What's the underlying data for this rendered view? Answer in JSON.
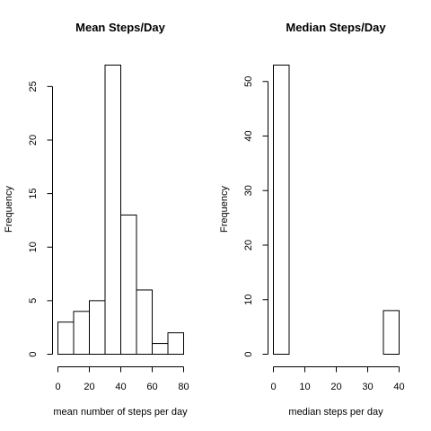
{
  "chart_data": [
    {
      "type": "bar",
      "title": "Mean Steps/Day",
      "xlabel": "mean number of steps per day",
      "ylabel": "Frequency",
      "bin_edges": [
        0,
        10,
        20,
        30,
        40,
        50,
        60,
        70,
        80
      ],
      "values": [
        3,
        4,
        5,
        27,
        13,
        6,
        1,
        2
      ],
      "xticks": [
        0,
        20,
        40,
        60,
        80
      ],
      "yticks": [
        0,
        5,
        10,
        15,
        20,
        25
      ],
      "xlim": [
        0,
        80
      ],
      "ylim": [
        0,
        27
      ],
      "grid": false
    },
    {
      "type": "bar",
      "title": "Median Steps/Day",
      "xlabel": "median steps per day",
      "ylabel": "Frequency",
      "bin_edges": [
        0,
        5,
        10,
        15,
        20,
        25,
        30,
        35,
        40
      ],
      "values": [
        53,
        0,
        0,
        0,
        0,
        0,
        0,
        8
      ],
      "xticks": [
        0,
        10,
        20,
        30,
        40
      ],
      "yticks": [
        0,
        10,
        20,
        30,
        40,
        50
      ],
      "xlim": [
        0,
        40
      ],
      "ylim": [
        0,
        53
      ],
      "grid": false
    }
  ]
}
